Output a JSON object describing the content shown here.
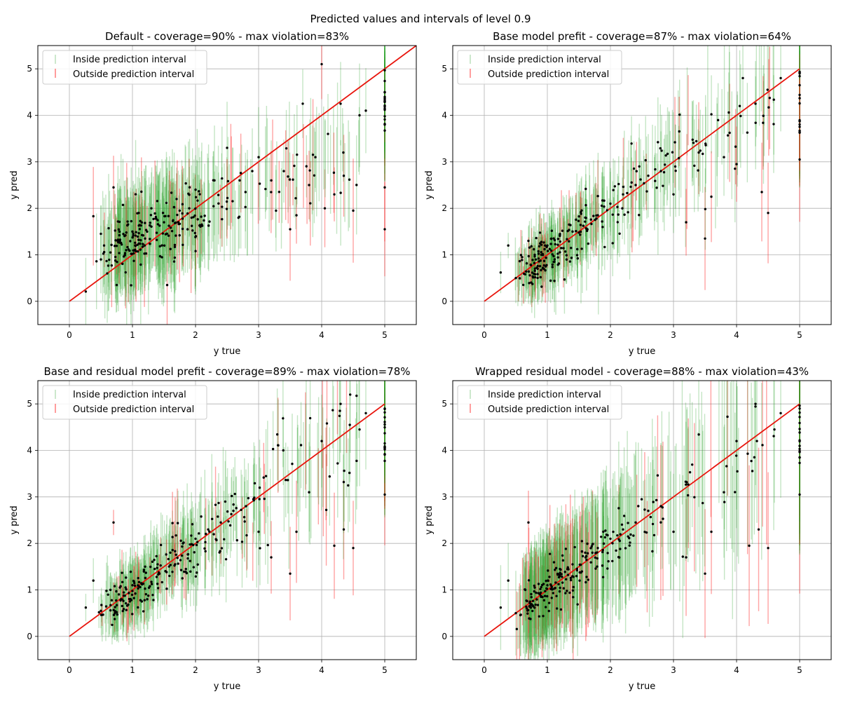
{
  "figure_title": "Predicted values and intervals of level 0.9",
  "legend": {
    "inside": "Inside prediction interval",
    "outside": "Outside prediction interval"
  },
  "colors": {
    "inside": "#2ca02c",
    "outside": "#ff3333",
    "diagonal": "#e8140c",
    "point": "#000000",
    "grid": "#b0b0b0"
  },
  "chart_data": [
    {
      "type": "scatter",
      "title": "Default - coverage=90% - max violation=83%",
      "xlabel": "y true",
      "ylabel": "y pred",
      "xlim": [
        -0.5,
        5.5
      ],
      "ylim": [
        -0.5,
        5.5
      ],
      "xticks": [
        0,
        1,
        2,
        3,
        4,
        5
      ],
      "yticks": [
        0,
        1,
        2,
        3,
        4,
        5
      ],
      "grid": true,
      "legend_position": "top-left",
      "coverage": 0.9,
      "max_violation": 0.83,
      "diagonal": [
        [
          0,
          0
        ],
        [
          5.5,
          5.5
        ]
      ],
      "sample_points": [
        [
          0.26,
          0.21
        ],
        [
          0.38,
          1.83
        ],
        [
          0.43,
          0.86
        ],
        [
          0.5,
          0.9
        ],
        [
          0.55,
          1.2
        ],
        [
          0.6,
          0.6
        ],
        [
          0.65,
          1.05
        ],
        [
          0.7,
          2.45
        ],
        [
          0.75,
          0.35
        ],
        [
          0.8,
          1.3
        ],
        [
          0.9,
          1.1
        ],
        [
          1.0,
          1.5
        ],
        [
          1.1,
          1.9
        ],
        [
          1.2,
          1.35
        ],
        [
          1.3,
          2.0
        ],
        [
          1.5,
          1.7
        ],
        [
          1.55,
          0.35
        ],
        [
          1.7,
          2.2
        ],
        [
          1.9,
          2.0
        ],
        [
          2.0,
          2.4
        ],
        [
          2.1,
          1.65
        ],
        [
          2.3,
          2.6
        ],
        [
          2.5,
          3.3
        ],
        [
          2.7,
          2.6
        ],
        [
          2.9,
          2.8
        ],
        [
          3.0,
          3.1
        ],
        [
          3.2,
          2.6
        ],
        [
          3.4,
          2.8
        ],
        [
          3.5,
          1.55
        ],
        [
          3.6,
          1.85
        ],
        [
          3.7,
          4.25
        ],
        [
          3.8,
          2.5
        ],
        [
          3.9,
          3.1
        ],
        [
          4.0,
          5.1
        ],
        [
          4.05,
          2.0
        ],
        [
          4.1,
          3.6
        ],
        [
          4.2,
          2.3
        ],
        [
          4.3,
          4.25
        ],
        [
          4.35,
          2.7
        ],
        [
          4.5,
          1.95
        ],
        [
          4.6,
          4.0
        ],
        [
          4.7,
          4.1
        ],
        [
          5.0,
          3.8
        ],
        [
          5.0,
          2.45
        ],
        [
          5.0,
          1.55
        ]
      ],
      "seed": 11
    },
    {
      "type": "scatter",
      "title": "Base model prefit - coverage=87% - max violation=64%",
      "xlabel": "y true",
      "ylabel": "y pred",
      "xlim": [
        -0.5,
        5.5
      ],
      "ylim": [
        -0.5,
        5.5
      ],
      "xticks": [
        0,
        1,
        2,
        3,
        4,
        5
      ],
      "yticks": [
        0,
        1,
        2,
        3,
        4,
        5
      ],
      "grid": true,
      "legend_position": "top-left",
      "coverage": 0.87,
      "max_violation": 0.64,
      "diagonal": [
        [
          0,
          0
        ],
        [
          5,
          5
        ]
      ],
      "sample_points": [
        [
          0.26,
          0.62
        ],
        [
          0.38,
          1.2
        ],
        [
          0.5,
          0.5
        ],
        [
          0.6,
          0.95
        ],
        [
          0.7,
          1.3
        ],
        [
          0.8,
          1.0
        ],
        [
          1.0,
          1.2
        ],
        [
          1.2,
          1.45
        ],
        [
          1.4,
          1.5
        ],
        [
          1.6,
          1.8
        ],
        [
          1.8,
          1.85
        ],
        [
          2.0,
          2.1
        ],
        [
          2.2,
          2.3
        ],
        [
          2.4,
          2.5
        ],
        [
          2.6,
          2.7
        ],
        [
          2.8,
          2.8
        ],
        [
          3.0,
          2.3
        ],
        [
          3.2,
          1.7
        ],
        [
          3.4,
          3.2
        ],
        [
          3.5,
          1.35
        ],
        [
          3.6,
          2.25
        ],
        [
          3.8,
          3.1
        ],
        [
          4.0,
          2.95
        ],
        [
          4.05,
          4.2
        ],
        [
          4.1,
          4.8
        ],
        [
          4.3,
          4.25
        ],
        [
          4.4,
          2.35
        ],
        [
          4.5,
          1.9
        ],
        [
          4.7,
          4.8
        ],
        [
          5.0,
          4.9
        ],
        [
          5.0,
          3.05
        ]
      ],
      "seed": 23
    },
    {
      "type": "scatter",
      "title": "Base and residual model prefit - coverage=89% - max violation=78%",
      "xlabel": "y true",
      "ylabel": "y pred",
      "xlim": [
        -0.5,
        5.5
      ],
      "ylim": [
        -0.5,
        5.5
      ],
      "xticks": [
        0,
        1,
        2,
        3,
        4,
        5
      ],
      "yticks": [
        0,
        1,
        2,
        3,
        4,
        5
      ],
      "grid": true,
      "legend_position": "top-left",
      "coverage": 0.89,
      "max_violation": 0.78,
      "diagonal": [
        [
          0,
          0
        ],
        [
          5,
          5
        ]
      ],
      "sample_points": [
        [
          0.26,
          0.62
        ],
        [
          0.38,
          1.2
        ],
        [
          0.5,
          0.55
        ],
        [
          0.65,
          1.0
        ],
        [
          0.7,
          2.45
        ],
        [
          0.8,
          1.05
        ],
        [
          1.0,
          1.1
        ],
        [
          1.2,
          1.5
        ],
        [
          1.4,
          1.55
        ],
        [
          1.6,
          1.8
        ],
        [
          1.8,
          2.0
        ],
        [
          2.0,
          2.1
        ],
        [
          2.2,
          2.3
        ],
        [
          2.4,
          2.45
        ],
        [
          2.6,
          2.7
        ],
        [
          2.8,
          2.8
        ],
        [
          3.0,
          2.25
        ],
        [
          3.2,
          1.7
        ],
        [
          3.5,
          1.35
        ],
        [
          3.6,
          2.25
        ],
        [
          3.8,
          3.1
        ],
        [
          4.0,
          4.2
        ],
        [
          4.2,
          1.95
        ],
        [
          4.3,
          5.0
        ],
        [
          4.35,
          2.3
        ],
        [
          4.5,
          1.9
        ],
        [
          4.6,
          4.45
        ],
        [
          4.7,
          4.8
        ],
        [
          5.0,
          4.9
        ],
        [
          5.0,
          3.05
        ]
      ],
      "seed": 37
    },
    {
      "type": "scatter",
      "title": "Wrapped residual model - coverage=88% - max violation=43%",
      "xlabel": "y true",
      "ylabel": "y pred",
      "xlim": [
        -0.5,
        5.5
      ],
      "ylim": [
        -0.5,
        5.5
      ],
      "xticks": [
        0,
        1,
        2,
        3,
        4,
        5
      ],
      "yticks": [
        0,
        1,
        2,
        3,
        4,
        5
      ],
      "grid": true,
      "legend_position": "top-left",
      "coverage": 0.88,
      "max_violation": 0.43,
      "diagonal": [
        [
          0,
          0
        ],
        [
          5,
          5
        ]
      ],
      "sample_points": [
        [
          0.26,
          0.62
        ],
        [
          0.38,
          1.2
        ],
        [
          0.5,
          0.5
        ],
        [
          0.65,
          1.0
        ],
        [
          0.7,
          2.45
        ],
        [
          0.8,
          1.05
        ],
        [
          1.0,
          1.1
        ],
        [
          1.2,
          1.45
        ],
        [
          1.4,
          1.55
        ],
        [
          1.6,
          1.8
        ],
        [
          1.8,
          1.9
        ],
        [
          2.0,
          2.1
        ],
        [
          2.2,
          2.3
        ],
        [
          2.4,
          2.45
        ],
        [
          2.6,
          2.7
        ],
        [
          2.8,
          2.8
        ],
        [
          3.0,
          2.25
        ],
        [
          3.2,
          1.7
        ],
        [
          3.5,
          1.35
        ],
        [
          3.6,
          2.25
        ],
        [
          3.8,
          3.1
        ],
        [
          4.0,
          4.2
        ],
        [
          4.2,
          1.95
        ],
        [
          4.3,
          5.0
        ],
        [
          4.35,
          2.3
        ],
        [
          4.5,
          1.9
        ],
        [
          4.6,
          4.45
        ],
        [
          4.7,
          4.8
        ],
        [
          5.0,
          4.9
        ],
        [
          5.0,
          3.05
        ]
      ],
      "seed": 53
    }
  ]
}
